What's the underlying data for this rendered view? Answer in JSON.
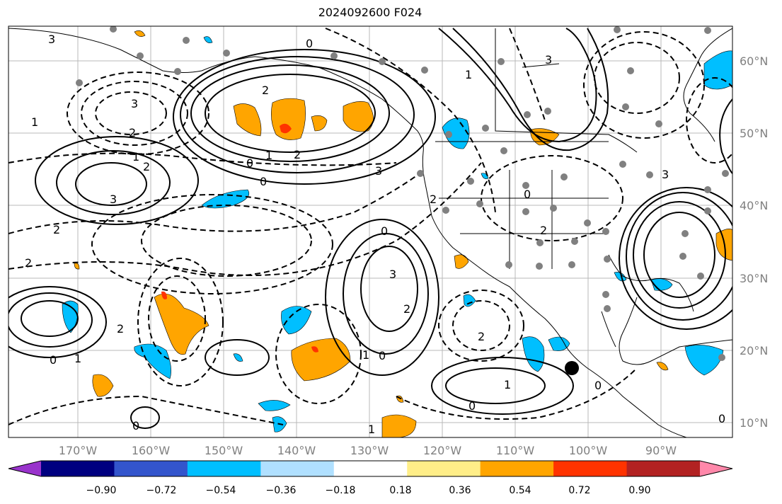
{
  "title": "2024092600 F024",
  "lon_ticks": [
    "170°W",
    "160°W",
    "150°W",
    "140°W",
    "130°W",
    "120°W",
    "110°W",
    "100°W",
    "90°W"
  ],
  "lat_ticks": [
    "60°N",
    "50°N",
    "40°N",
    "30°N",
    "20°N",
    "10°N"
  ],
  "colorbar": {
    "ticks": [
      "−0.90",
      "−0.72",
      "−0.54",
      "−0.36",
      "−0.18",
      "0.18",
      "0.36",
      "0.54",
      "0.72",
      "0.90"
    ],
    "colors": [
      "#9933cc",
      "#000080",
      "#3355cc",
      "#00bfff",
      "#b0e0ff",
      "#ffffff",
      "#ffee88",
      "#ffa500",
      "#ff3300",
      "#b22222",
      "#ff88aa"
    ]
  },
  "contour_labels": [
    "3",
    "0",
    "2",
    "3",
    "1",
    "2",
    "3",
    "2",
    "2",
    "1",
    "0",
    "1",
    "0",
    "3",
    "0",
    "2",
    "3",
    "2",
    "1",
    "0",
    "0",
    "2",
    "2",
    "1",
    "1",
    "0",
    "3",
    "0",
    "0",
    "1",
    "2",
    "2",
    "1",
    "2",
    "3",
    "0",
    "0"
  ],
  "colors": {
    "positive_fill": "#ffa500",
    "negative_fill": "#00bfff",
    "contour": "#000000",
    "station_dot": "#808080"
  }
}
